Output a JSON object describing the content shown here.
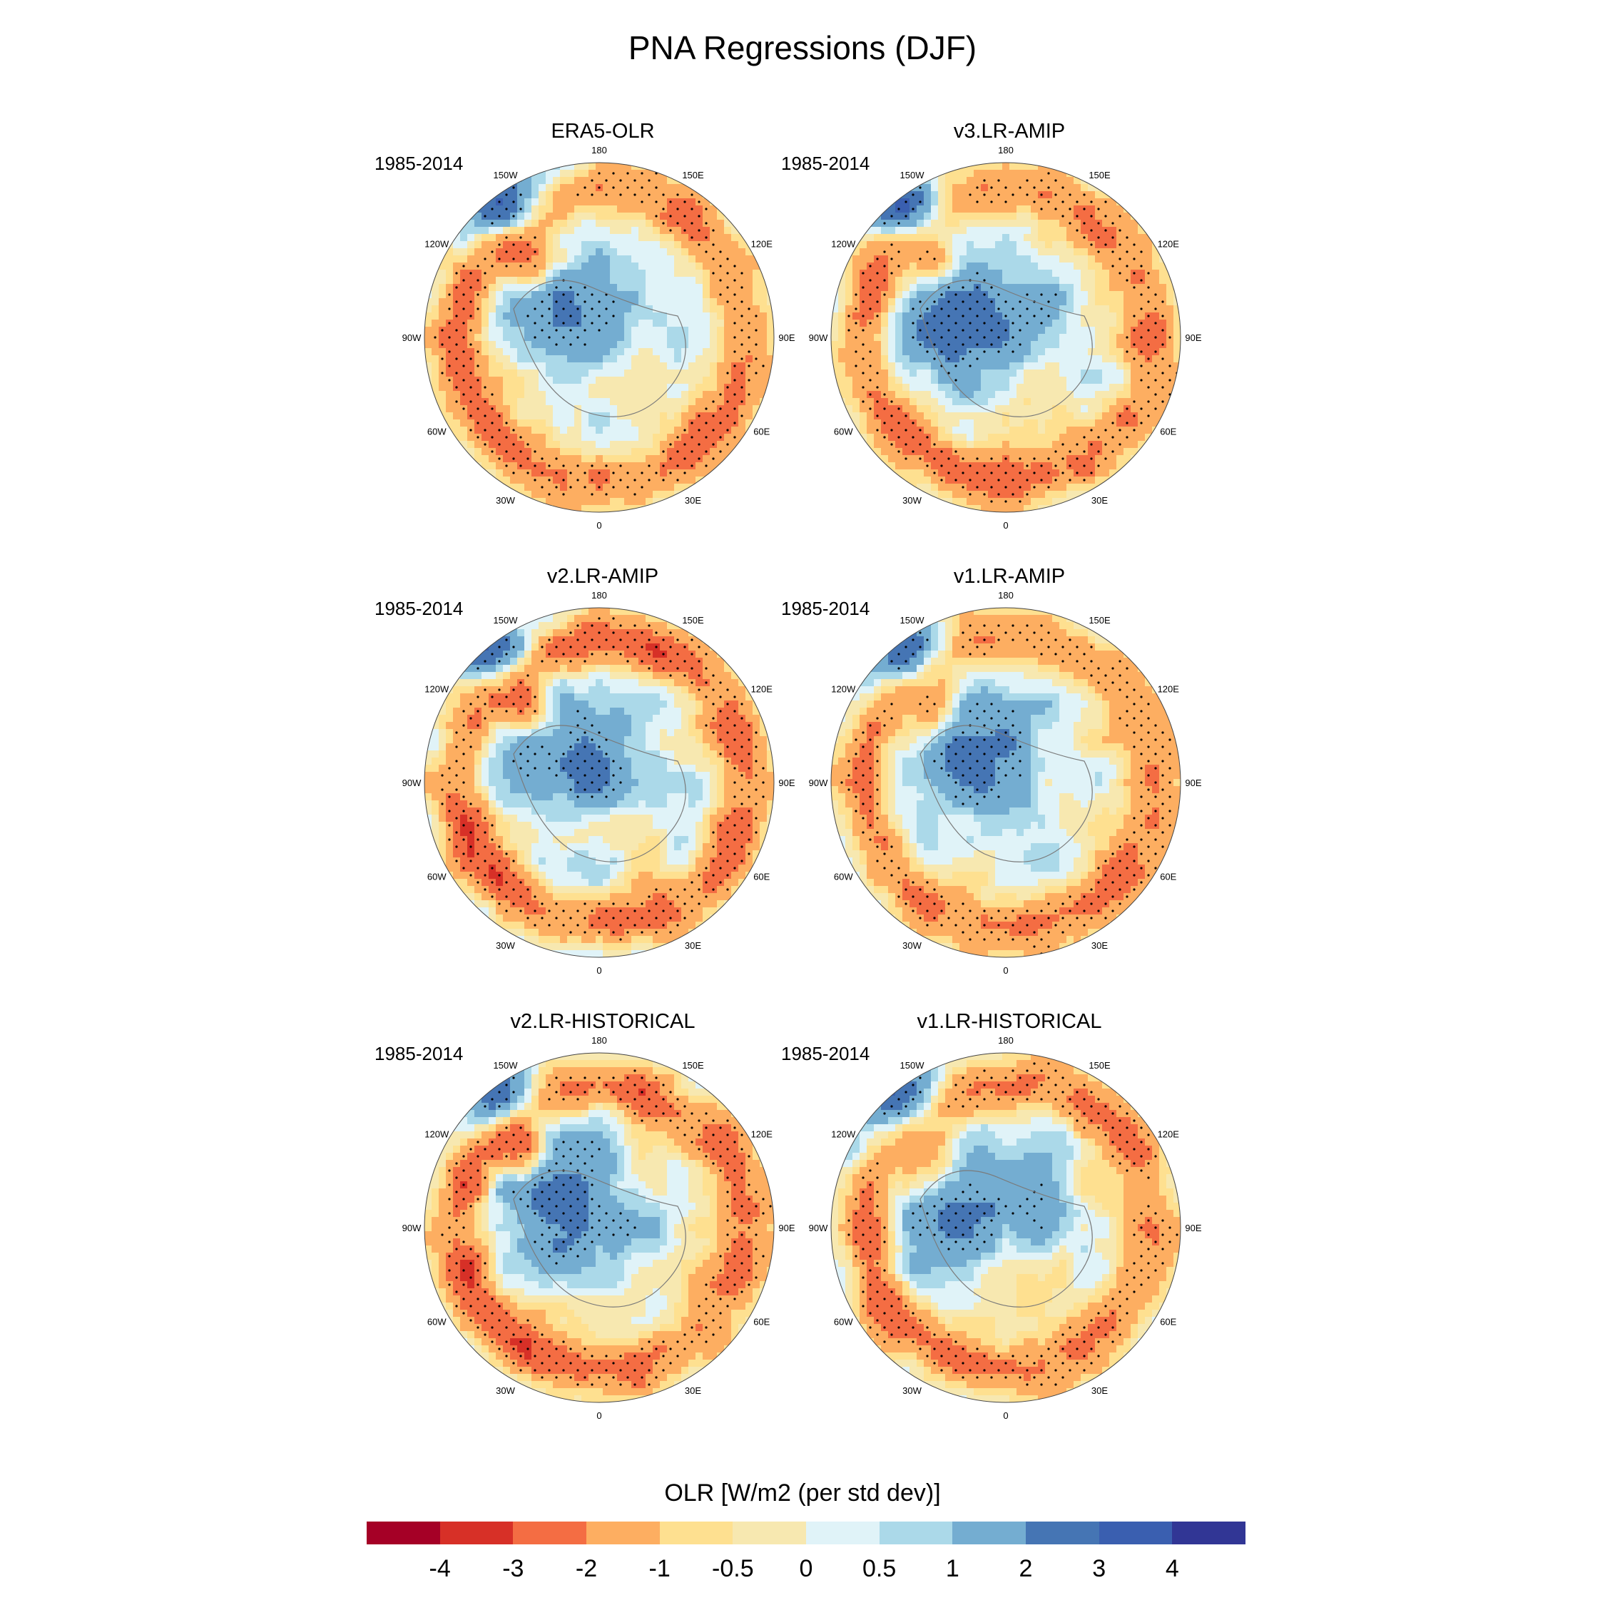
{
  "figure": {
    "title": "PNA Regressions (DJF)"
  },
  "colors": {
    "palette": [
      "#a50026",
      "#d73027",
      "#f46d43",
      "#fdae61",
      "#fee090",
      "#f7e8b0",
      "#e0f3f8",
      "#abd9e9",
      "#74add1",
      "#4575b4",
      "#3a5fb0",
      "#313695"
    ],
    "coastline": "#7a7a7a",
    "stipple": "#000000"
  },
  "panels": [
    {
      "title": "ERA5-OLR",
      "period": "1985-2014"
    },
    {
      "title": "v3.LR-AMIP",
      "period": "1985-2014"
    },
    {
      "title": "v2.LR-AMIP",
      "period": "1985-2014"
    },
    {
      "title": "v1.LR-AMIP",
      "period": "1985-2014"
    },
    {
      "title": "v2.LR-HISTORICAL",
      "period": "1985-2014"
    },
    {
      "title": "v1.LR-HISTORICAL",
      "period": "1985-2014"
    }
  ],
  "longitude_labels": [
    "180",
    "150E",
    "120E",
    "90E",
    "60E",
    "30E",
    "0",
    "30W",
    "60W",
    "90W",
    "120W",
    "150W"
  ],
  "chart_data": {
    "type": "heatmap",
    "projection": "polar stereographic (Northern Hemisphere)",
    "variable": "OLR",
    "colorbar": {
      "title": "OLR [W/m2 (per std dev)]",
      "tick_labels": [
        "-4",
        "-3",
        "-2",
        "-1",
        "-0.5",
        "0",
        "0.5",
        "1",
        "2",
        "3",
        "4"
      ],
      "levels": [
        -4,
        -3,
        -2,
        -1,
        -0.5,
        0,
        0.5,
        1,
        2,
        3,
        4
      ],
      "bins": 12
    },
    "panels": [
      {
        "name": "ERA5-OLR",
        "period": "1985-2014"
      },
      {
        "name": "v3.LR-AMIP",
        "period": "1985-2014"
      },
      {
        "name": "v2.LR-AMIP",
        "period": "1985-2014"
      },
      {
        "name": "v1.LR-AMIP",
        "period": "1985-2014"
      },
      {
        "name": "v2.LR-HISTORICAL",
        "period": "1985-2014"
      },
      {
        "name": "v1.LR-HISTORICAL",
        "period": "1985-2014"
      }
    ]
  }
}
